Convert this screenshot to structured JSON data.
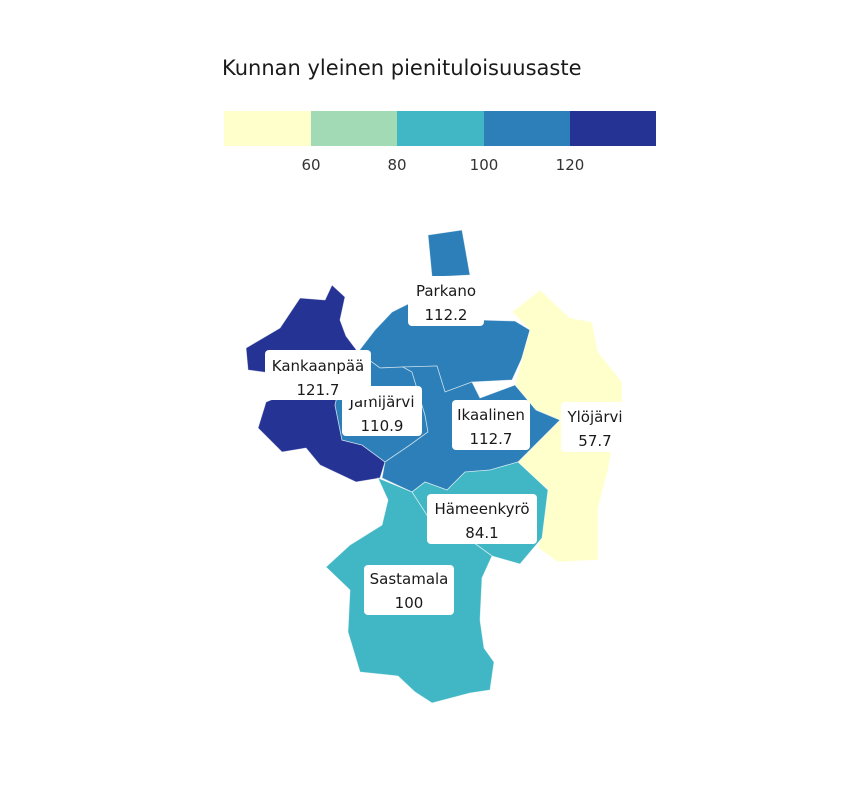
{
  "legend": {
    "title": "Kunnan yleinen pienituloisuusaste",
    "bins": [
      {
        "color": "#ffffcc"
      },
      {
        "color": "#a1dab4"
      },
      {
        "color": "#41b6c4"
      },
      {
        "color": "#2c7fb8"
      },
      {
        "color": "#253494"
      }
    ],
    "ticks": [
      "60",
      "80",
      "100",
      "120"
    ]
  },
  "municipalities": [
    {
      "id": "parkano",
      "name": "Parkano",
      "value": "112.2",
      "color": "#2c7fb8"
    },
    {
      "id": "kankaanpaa",
      "name": "Kankaanpää",
      "value": "121.7",
      "color": "#253494"
    },
    {
      "id": "jamijarvi",
      "name": "Jämijärvi",
      "value": "110.9",
      "color": "#2c7fb8"
    },
    {
      "id": "ikaalinen",
      "name": "Ikaalinen",
      "value": "112.7",
      "color": "#2c7fb8"
    },
    {
      "id": "ylojarvi",
      "name": "Ylöjärvi",
      "value": "57.7",
      "color": "#ffffcc"
    },
    {
      "id": "hameenkyro",
      "name": "Hämeenkyrö",
      "value": "84.1",
      "color": "#41b6c4"
    },
    {
      "id": "sastamala",
      "name": "Sastamala",
      "value": "100",
      "color": "#41b6c4"
    }
  ]
}
